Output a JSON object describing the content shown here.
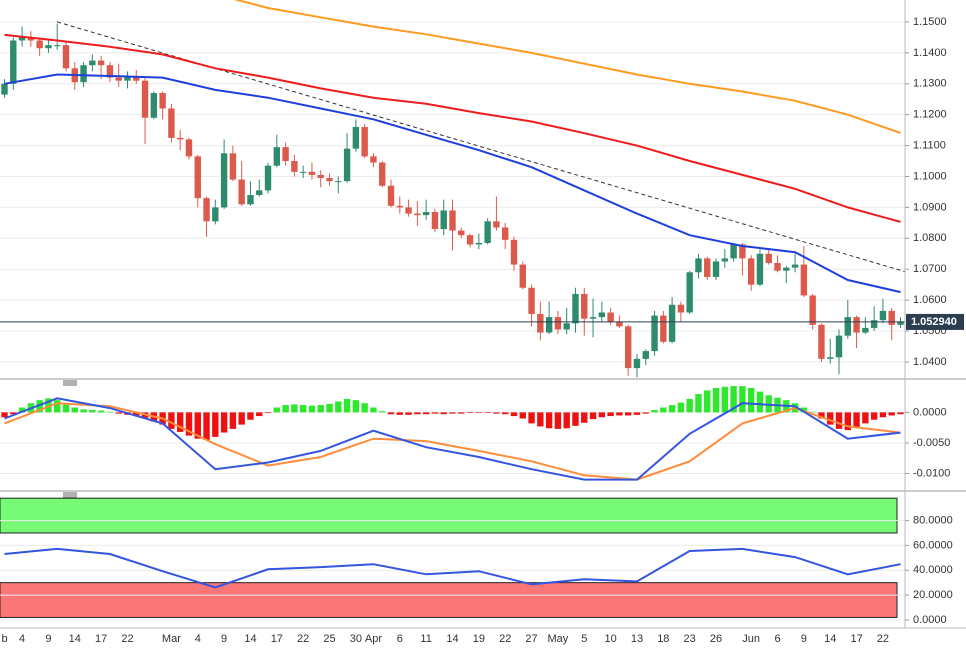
{
  "chart_data": [
    {
      "type": "candlestick",
      "categories": [
        "b",
        null,
        "4",
        null,
        null,
        "9",
        null,
        null,
        "14",
        null,
        null,
        "17",
        null,
        null,
        "22",
        null,
        null,
        null,
        null,
        "Mar",
        null,
        null,
        "4",
        null,
        null,
        "9",
        null,
        null,
        "14",
        null,
        null,
        "17",
        null,
        null,
        "22",
        null,
        null,
        "25",
        null,
        null,
        "30",
        null,
        "Apr",
        null,
        null,
        "6",
        null,
        null,
        "11",
        null,
        null,
        "14",
        null,
        null,
        "19",
        null,
        null,
        "22",
        null,
        null,
        "27",
        null,
        null,
        "May",
        null,
        null,
        "5",
        null,
        null,
        "10",
        null,
        null,
        "13",
        null,
        null,
        "18",
        null,
        null,
        "23",
        null,
        null,
        "26",
        null,
        null,
        null,
        "Jun",
        null,
        null,
        "6",
        null,
        null,
        "9",
        null,
        null,
        "14",
        null,
        null,
        "17",
        null,
        null,
        "22",
        null,
        null
      ],
      "open": [
        1.1265,
        1.13,
        1.144,
        1.145,
        1.144,
        1.1415,
        1.1425,
        1.1425,
        1.135,
        1.1305,
        1.136,
        1.1375,
        1.136,
        1.132,
        1.131,
        1.1325,
        1.131,
        1.119,
        1.127,
        1.122,
        1.1125,
        1.112,
        1.1065,
        1.093,
        1.0855,
        1.09,
        1.1075,
        1.099,
        1.091,
        1.094,
        1.0955,
        1.1035,
        1.1095,
        1.105,
        1.1015,
        1.1015,
        1.1005,
        1.0995,
        1.0985,
        1.0985,
        1.109,
        1.116,
        1.1065,
        1.1045,
        1.097,
        1.0905,
        1.09,
        1.088,
        1.0875,
        1.0885,
        1.083,
        1.089,
        1.0825,
        1.081,
        1.078,
        1.0785,
        1.0855,
        1.0835,
        1.0795,
        1.0715,
        1.064,
        1.0555,
        1.0495,
        1.0545,
        1.0505,
        1.0525,
        1.062,
        1.054,
        1.0545,
        1.056,
        1.053,
        1.0515,
        1.038,
        1.041,
        1.0435,
        1.055,
        1.0465,
        1.0585,
        1.056,
        1.069,
        1.0735,
        1.0675,
        1.0725,
        1.0735,
        1.078,
        1.0735,
        1.065,
        1.075,
        1.072,
        1.0695,
        1.0705,
        1.0715,
        1.0615,
        1.052,
        1.041,
        1.0415,
        1.0485,
        1.0545,
        1.0495,
        1.051,
        1.0535,
        1.0565,
        1.052
      ],
      "high": [
        1.1315,
        1.145,
        1.1485,
        1.147,
        1.145,
        1.1445,
        1.1495,
        1.144,
        1.137,
        1.137,
        1.1395,
        1.139,
        1.137,
        1.1365,
        1.134,
        1.1345,
        1.132,
        1.1275,
        1.1275,
        1.1235,
        1.115,
        1.1125,
        1.107,
        1.0935,
        1.0925,
        1.112,
        1.11,
        1.105,
        1.0985,
        1.099,
        1.1045,
        1.1135,
        1.111,
        1.107,
        1.1035,
        1.1045,
        1.102,
        1.101,
        1.1,
        1.114,
        1.1185,
        1.117,
        1.1075,
        1.105,
        1.099,
        1.0935,
        1.0925,
        1.092,
        1.0925,
        1.0895,
        1.0925,
        1.0925,
        1.0835,
        1.0815,
        1.0815,
        1.0865,
        1.0935,
        1.085,
        1.0805,
        1.0725,
        1.065,
        1.0595,
        1.0595,
        1.0565,
        1.0575,
        1.064,
        1.064,
        1.0605,
        1.0595,
        1.0575,
        1.055,
        1.052,
        1.0425,
        1.044,
        1.0565,
        1.0565,
        1.061,
        1.0595,
        1.0695,
        1.075,
        1.074,
        1.0735,
        1.0765,
        1.0785,
        1.0785,
        1.0745,
        1.0765,
        1.0765,
        1.0745,
        1.071,
        1.075,
        1.0775,
        1.062,
        1.0525,
        1.0475,
        1.0505,
        1.06,
        1.055,
        1.0545,
        1.058,
        1.0605,
        1.0575,
        1.0545
      ],
      "low": [
        1.1255,
        1.128,
        1.142,
        1.142,
        1.139,
        1.14,
        1.141,
        1.134,
        1.128,
        1.129,
        1.134,
        1.1315,
        1.1305,
        1.129,
        1.1285,
        1.13,
        1.1105,
        1.1185,
        1.1185,
        1.111,
        1.1085,
        1.1055,
        1.09,
        1.0805,
        1.0845,
        1.0895,
        1.0985,
        1.0905,
        1.0905,
        1.0935,
        1.0945,
        1.103,
        1.1035,
        1.1,
        1.0995,
        1.099,
        1.0965,
        1.097,
        1.0945,
        1.098,
        1.108,
        1.106,
        1.103,
        1.0965,
        1.09,
        1.088,
        1.087,
        1.084,
        1.086,
        1.082,
        1.081,
        1.076,
        1.08,
        1.077,
        1.0765,
        1.078,
        1.0825,
        1.0765,
        1.0695,
        1.0635,
        1.0515,
        1.047,
        1.049,
        1.049,
        1.049,
        1.0495,
        1.0485,
        1.048,
        1.053,
        1.052,
        1.051,
        1.0355,
        1.035,
        1.039,
        1.042,
        1.046,
        1.046,
        1.053,
        1.0555,
        1.067,
        1.0665,
        1.0665,
        1.0705,
        1.0725,
        1.068,
        1.063,
        1.0645,
        1.0715,
        1.069,
        1.0655,
        1.069,
        1.061,
        1.0505,
        1.04,
        1.0395,
        1.036,
        1.0475,
        1.0445,
        1.049,
        1.05,
        1.0525,
        1.047,
        1.051
      ],
      "close": [
        1.13,
        1.144,
        1.145,
        1.144,
        1.1415,
        1.1425,
        1.1425,
        1.135,
        1.1305,
        1.136,
        1.1375,
        1.136,
        1.132,
        1.131,
        1.1325,
        1.131,
        1.119,
        1.127,
        1.122,
        1.1125,
        1.112,
        1.1065,
        1.093,
        1.0855,
        1.09,
        1.1075,
        1.099,
        1.091,
        1.094,
        1.0955,
        1.1035,
        1.1095,
        1.105,
        1.1015,
        1.1015,
        1.1005,
        1.0995,
        1.0985,
        1.0985,
        1.109,
        1.116,
        1.1065,
        1.1045,
        1.097,
        1.0905,
        1.09,
        1.088,
        1.0875,
        1.0885,
        1.083,
        1.089,
        1.0825,
        1.081,
        1.078,
        1.0785,
        1.0855,
        1.0835,
        1.0795,
        1.0715,
        1.064,
        1.0555,
        1.0495,
        1.0545,
        1.0505,
        1.0525,
        1.062,
        1.054,
        1.0545,
        1.056,
        1.053,
        1.0515,
        1.038,
        1.041,
        1.0435,
        1.055,
        1.0465,
        1.0585,
        1.056,
        1.069,
        1.0735,
        1.0675,
        1.0725,
        1.0735,
        1.078,
        1.0735,
        1.065,
        1.075,
        1.072,
        1.0695,
        1.0705,
        1.0715,
        1.0615,
        1.052,
        1.041,
        1.0415,
        1.0485,
        1.0545,
        1.0495,
        1.051,
        1.0535,
        1.0565,
        1.052,
        1.0529
      ],
      "up_color": "#2e8b6e",
      "down_color": "#dc5a4c",
      "ylim": [
        1.0348,
        1.1571
      ],
      "yticks": [
        {
          "value": 1.15,
          "label": "1.1500"
        },
        {
          "value": 1.14,
          "label": "1.1400"
        },
        {
          "value": 1.13,
          "label": "1.1300"
        },
        {
          "value": 1.12,
          "label": "1.1200"
        },
        {
          "value": 1.11,
          "label": "1.1100"
        },
        {
          "value": 1.1,
          "label": "1.1000"
        },
        {
          "value": 1.09,
          "label": "1.0900"
        },
        {
          "value": 1.08,
          "label": "1.0800"
        },
        {
          "value": 1.07,
          "label": "1.0700"
        },
        {
          "value": 1.06,
          "label": "1.0600"
        },
        {
          "value": 1.05,
          "label": "1.0500"
        },
        {
          "value": 1.04,
          "label": "1.0400"
        }
      ],
      "grid": true,
      "last_price": {
        "value": 1.05294,
        "label": "1.052940",
        "color": "#2b3e50"
      },
      "lines": [
        {
          "color": "#333333",
          "dashed": true,
          "x": [
            6,
            103
          ],
          "values": [
            1.15,
            1.0688
          ]
        },
        {
          "color": "#ff9a1f",
          "x": [
            24,
            30,
            36,
            42,
            48,
            54,
            60,
            66,
            72,
            78,
            84,
            90,
            96,
            102
          ],
          "values": [
            1.159,
            1.1545,
            1.1515,
            1.1485,
            1.146,
            1.143,
            1.14,
            1.1365,
            1.133,
            1.13,
            1.1275,
            1.1245,
            1.12,
            1.1141
          ]
        },
        {
          "color": "#ee1c1c",
          "x": [
            0,
            6,
            12,
            18,
            24,
            30,
            36,
            42,
            48,
            54,
            60,
            66,
            72,
            78,
            84,
            90,
            96,
            102
          ],
          "values": [
            1.1458,
            1.144,
            1.142,
            1.1395,
            1.135,
            1.132,
            1.1285,
            1.1255,
            1.1235,
            1.1205,
            1.1178,
            1.114,
            1.11,
            1.105,
            1.1005,
            1.096,
            1.09,
            1.0853
          ]
        },
        {
          "color": "#1f3fdc",
          "x": [
            0,
            6,
            12,
            18,
            24,
            30,
            36,
            42,
            48,
            54,
            60,
            66,
            72,
            78,
            84,
            90,
            96,
            102
          ],
          "values": [
            1.13,
            1.133,
            1.1325,
            1.132,
            1.128,
            1.1255,
            1.122,
            1.1185,
            1.1135,
            1.1085,
            1.103,
            1.0955,
            1.088,
            1.081,
            1.0775,
            1.0755,
            1.0665,
            1.0626
          ]
        }
      ]
    },
    {
      "type": "bar",
      "values": [
        -0.0008,
        -0.0003,
        0.0008,
        0.0015,
        0.002,
        0.0023,
        0.002,
        0.0015,
        0.0008,
        0.0005,
        0.0004,
        0.0003,
        0.0001,
        -0.0002,
        -0.0004,
        -0.0006,
        -0.0009,
        -0.0015,
        -0.002,
        -0.0027,
        -0.0032,
        -0.0038,
        -0.0043,
        -0.0045,
        -0.004,
        -0.0033,
        -0.0027,
        -0.002,
        -0.0012,
        -0.0006,
        -0.0001,
        0.0008,
        0.0012,
        0.0013,
        0.0012,
        0.0011,
        0.0012,
        0.0014,
        0.0018,
        0.0022,
        0.002,
        0.0015,
        0.0008,
        0.0002,
        -0.0003,
        -0.0004,
        -0.0004,
        -0.0003,
        -0.0003,
        -0.0002,
        -0.0003,
        -0.0002,
        -0.0002,
        -0.0001,
        -0.0001,
        -0.0001,
        -0.0002,
        -0.0003,
        -0.0006,
        -0.001,
        -0.0018,
        -0.0023,
        -0.0026,
        -0.0027,
        -0.0026,
        -0.0022,
        -0.0017,
        -0.0011,
        -0.0008,
        -0.0006,
        -0.0005,
        -0.0005,
        -0.0004,
        -0.0002,
        0.0004,
        0.0008,
        0.0012,
        0.0016,
        0.0022,
        0.003,
        0.0036,
        0.004,
        0.0042,
        0.0043,
        0.0043,
        0.004,
        0.0034,
        0.0028,
        0.0024,
        0.002,
        0.0015,
        0.0008,
        0.0001,
        -0.001,
        -0.002,
        -0.0027,
        -0.0029,
        -0.0025,
        -0.0018,
        -0.0012,
        -0.0008,
        -0.0005,
        -0.0003
      ],
      "positive_color": "#2ee82e",
      "negative_color": "#ee1111",
      "ylim": [
        -0.0127,
        0.0053
      ],
      "yticks": [
        {
          "value": 0,
          "label": "0.0000"
        },
        {
          "value": -0.005,
          "label": "-0.0050"
        },
        {
          "value": -0.01,
          "label": "-0.0100"
        }
      ],
      "grid": true,
      "lines": [
        {
          "color": "#ff8c3a",
          "x": [
            0,
            6,
            12,
            18,
            24,
            30,
            36,
            42,
            48,
            54,
            60,
            66,
            72,
            78,
            84,
            90,
            96,
            102
          ],
          "values": [
            -0.0018,
            0.0015,
            0.001,
            -0.001,
            -0.0052,
            -0.0087,
            -0.0073,
            -0.0043,
            -0.0047,
            -0.0063,
            -0.008,
            -0.0103,
            -0.011,
            -0.008,
            -0.0018,
            0.0007,
            -0.0023,
            -0.0033
          ]
        },
        {
          "color": "#3355e0",
          "x": [
            0,
            6,
            12,
            18,
            24,
            30,
            36,
            42,
            48,
            54,
            60,
            66,
            72,
            78,
            84,
            90,
            96,
            102
          ],
          "values": [
            -0.001,
            0.0023,
            0.0007,
            -0.0018,
            -0.0093,
            -0.0082,
            -0.0063,
            -0.003,
            -0.0057,
            -0.0073,
            -0.0093,
            -0.011,
            -0.011,
            -0.0035,
            0.0015,
            0.001,
            -0.0043,
            -0.0033
          ]
        }
      ]
    },
    {
      "type": "line",
      "ylim": [
        -6.5,
        103
      ],
      "yticks": [
        {
          "value": 80,
          "label": "80.0000"
        },
        {
          "value": 60,
          "label": "60.0000"
        },
        {
          "value": 40,
          "label": "40.0000"
        },
        {
          "value": 20,
          "label": "20.0000"
        },
        {
          "value": 0,
          "label": "0.0000"
        }
      ],
      "grid": true,
      "bands": [
        {
          "range": [
            70,
            98
          ],
          "color": "#77fb77"
        },
        {
          "range": [
            2,
            30
          ],
          "color": "#fb7676"
        }
      ],
      "lines": [
        {
          "color": "#3355e0",
          "x": [
            0,
            6,
            12,
            18,
            24,
            30,
            36,
            42,
            48,
            54,
            60,
            66,
            72,
            78,
            84,
            90,
            96,
            102
          ],
          "values": [
            53.1,
            57.2,
            53.1,
            39.2,
            26.1,
            40.8,
            42.5,
            44.9,
            36.7,
            39.2,
            28.6,
            32.7,
            31.0,
            55.5,
            57.2,
            50.6,
            36.7,
            44.9
          ]
        }
      ]
    }
  ]
}
